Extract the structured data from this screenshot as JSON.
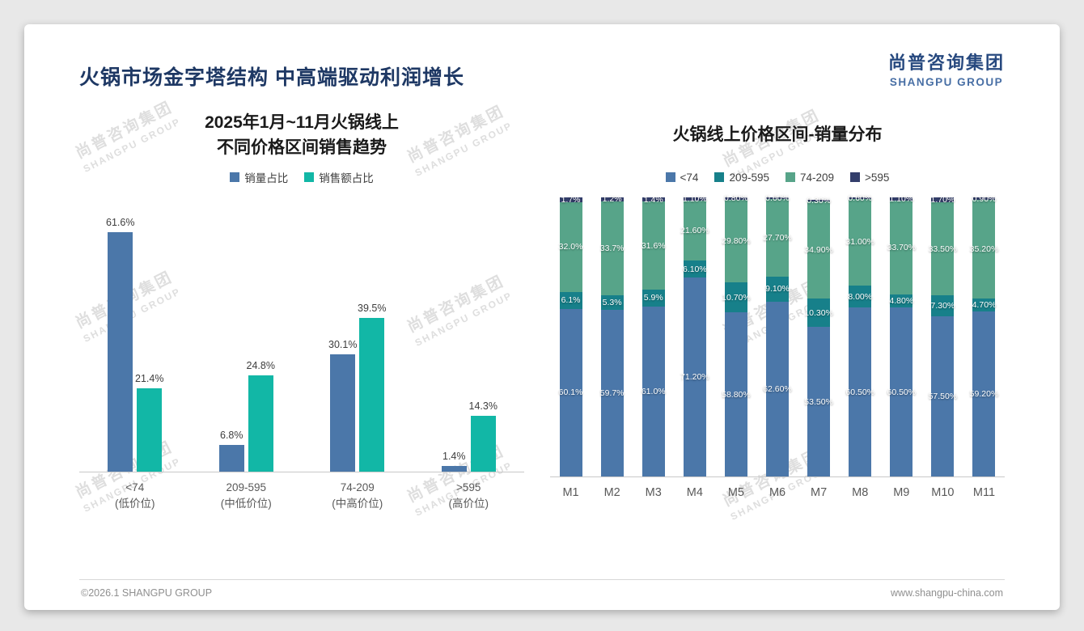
{
  "slide": {
    "title": "火锅市场金字塔结构 中高端驱动利润增长",
    "logo": {
      "cn": "尚普咨询集团",
      "en": "SHANGPU GROUP"
    },
    "watermark": {
      "cn": "尚普咨询集团",
      "en": "SHANGPU GROUP"
    },
    "footer": {
      "copyright": "©2026.1 SHANGPU GROUP",
      "website": "www.shangpu-china.com"
    }
  },
  "colors": {
    "accent_blue": "#4B77A9",
    "accent_teal": "#12B7A6",
    "stack_teal_dark": "#17808A",
    "stack_green": "#57A489",
    "stack_navy": "#333E6B",
    "title_navy": "#1E3864"
  },
  "chart_data": [
    {
      "type": "bar",
      "variant": "grouped",
      "title_lines": [
        "2025年1月~11月火锅线上",
        "不同价格区间销售趋势"
      ],
      "categories": [
        "<74",
        "209-595",
        "74-209",
        ">595"
      ],
      "category_sublabels": [
        "(低价位)",
        "(中低价位)",
        "(中高价位)",
        "(高价位)"
      ],
      "series": [
        {
          "key": "volume-share",
          "name": "销量占比",
          "color": "#4B77A9",
          "values": [
            "61.6",
            "6.8",
            "30.1",
            "1.4"
          ]
        },
        {
          "key": "revenue-share",
          "name": "销售额占比",
          "color": "#12B7A6",
          "values": [
            "21.4",
            "24.8",
            "39.5",
            "14.3"
          ]
        }
      ],
      "value_suffix": "%",
      "ylim": [
        0,
        68
      ],
      "legend_position": "top",
      "grid": false
    },
    {
      "type": "bar",
      "variant": "stacked",
      "title": "火锅线上价格区间-销量分布",
      "categories": [
        "M1",
        "M2",
        "M3",
        "M4",
        "M5",
        "M6",
        "M7",
        "M8",
        "M9",
        "M10",
        "M11"
      ],
      "series": [
        {
          "key": "lt74",
          "name": "<74",
          "color": "#4B77A9",
          "values": [
            "60.1",
            "59.7",
            "61.0",
            "71.20",
            "58.80",
            "62.60",
            "53.50",
            "60.50",
            "60.50",
            "57.50",
            "59.20"
          ]
        },
        {
          "key": "209-595",
          "name": "209-595",
          "color": "#17808A",
          "values": [
            "6.1",
            "5.3",
            "5.9",
            "6.10",
            "10.70",
            "9.10",
            "10.30",
            "8.00",
            "4.80",
            "7.30",
            "4.70"
          ]
        },
        {
          "key": "74-209",
          "name": "74-209",
          "color": "#57A489",
          "values": [
            "32.0",
            "33.7",
            "31.6",
            "21.60",
            "29.80",
            "27.70",
            "34.90",
            "31.00",
            "33.70",
            "33.50",
            "35.20"
          ]
        },
        {
          "key": "gt595",
          "name": ">595",
          "color": "#333E6B",
          "values": [
            "1.7",
            "1.2",
            "1.4",
            "1.10",
            "0.80",
            "0.60",
            "0.30",
            "0.60",
            "1.10",
            "1.70",
            "0.90"
          ]
        }
      ],
      "value_suffix": "%",
      "ylim": [
        0,
        100
      ],
      "legend_position": "top",
      "grid": false
    }
  ]
}
